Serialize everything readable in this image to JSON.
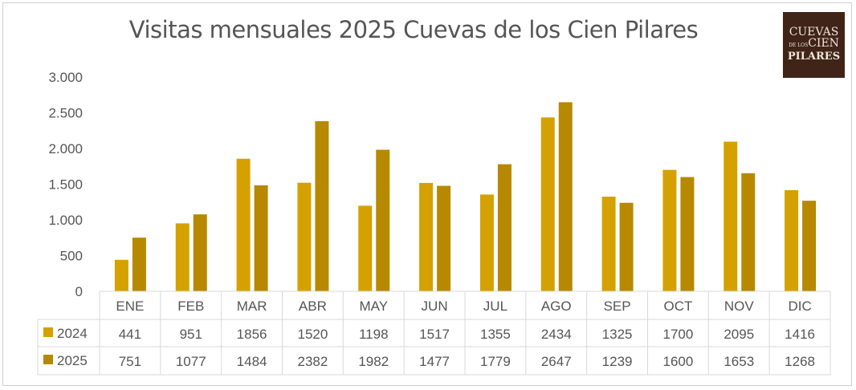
{
  "chart_data": {
    "type": "bar",
    "title": "Visitas mensuales 2025 Cuevas de los Cien Pilares",
    "categories": [
      "ENE",
      "FEB",
      "MAR",
      "ABR",
      "MAY",
      "JUN",
      "JUL",
      "AGO",
      "SEP",
      "OCT",
      "NOV",
      "DIC"
    ],
    "series": [
      {
        "name": "2024",
        "color": "#D4A100",
        "values": [
          441,
          951,
          1856,
          1520,
          1198,
          1517,
          1355,
          2434,
          1325,
          1700,
          2095,
          1416
        ]
      },
      {
        "name": "2025",
        "color": "#B68900",
        "values": [
          751,
          1077,
          1484,
          2382,
          1982,
          1477,
          1779,
          2647,
          1239,
          1600,
          1653,
          1268
        ]
      }
    ],
    "ylim": [
      0,
      3000
    ],
    "yticks": [
      0,
      500,
      1000,
      1500,
      2000,
      2500,
      3000
    ],
    "ytick_labels": [
      "0",
      "500",
      "1.000",
      "1.500",
      "2.000",
      "2.500",
      "3.000"
    ],
    "grid": false,
    "legend": "data-table",
    "xlabel": "",
    "ylabel": ""
  },
  "logo": {
    "text": "CUEVAS DE LOS CIEN PILARES"
  }
}
